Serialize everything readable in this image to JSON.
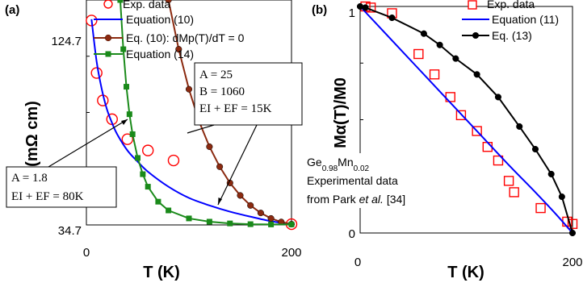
{
  "chart_data": [
    {
      "panel_label": "(a)",
      "type": "scatter",
      "xlabel": "T (K)",
      "ylabel": "ρ (mΩ cm)",
      "xlim": [
        0,
        200
      ],
      "ylim": [
        34.7,
        124.7
      ],
      "x_ticks": [
        "0",
        "200"
      ],
      "y_ticks": [
        "124.7",
        "34.7"
      ],
      "legend_position": "top-right",
      "series": [
        {
          "name": "Exp. data",
          "kind": "markers",
          "marker": "open-circle",
          "color": "#ff0000",
          "x": [
            5,
            10,
            16,
            25,
            40,
            60,
            85,
            200
          ],
          "y": [
            116.5,
            95.5,
            84.5,
            77.0,
            69.0,
            64.5,
            60.5,
            35.0
          ]
        },
        {
          "name": "Equation (10)",
          "kind": "line",
          "color": "#0000ff",
          "x": [
            5,
            10,
            15,
            20,
            25,
            30,
            40,
            50,
            60,
            80,
            100,
            120,
            140,
            160,
            180,
            200
          ],
          "y": [
            117.0,
            100.0,
            89.0,
            81.0,
            75.5,
            71.0,
            64.5,
            60.0,
            56.0,
            50.0,
            45.5,
            42.5,
            40.0,
            38.0,
            36.2,
            35.0
          ]
        },
        {
          "name": "Eq. (10): dMp(T)/dT = 0",
          "kind": "line-markers",
          "marker": "filled-circle",
          "color": "#8b2a10",
          "x": [
            80,
            90,
            100,
            110,
            120,
            130,
            140,
            150,
            160,
            170,
            180,
            190,
            200
          ],
          "y": [
            124.7,
            105.0,
            89.0,
            76.0,
            66.0,
            58.0,
            51.5,
            46.5,
            42.5,
            39.5,
            37.3,
            35.9,
            35.0
          ]
        },
        {
          "name": "Equation (14)",
          "kind": "line-markers",
          "marker": "filled-square",
          "color": "#1a8a1a",
          "x": [
            33,
            36,
            39,
            42,
            45,
            50,
            55,
            60,
            70,
            80,
            100,
            120,
            140,
            160,
            180,
            200
          ],
          "y": [
            124.7,
            105.0,
            90.0,
            79.0,
            71.0,
            61.5,
            55.0,
            50.0,
            44.0,
            40.5,
            37.3,
            36.0,
            35.3,
            35.0,
            34.9,
            34.9
          ]
        }
      ],
      "annotations": [
        {
          "text_lines": [
            "A = 25",
            "B = 1060",
            "EI + EF = 15K"
          ]
        },
        {
          "text_lines": [
            "A = 1.8",
            "EI + EF = 80K"
          ]
        }
      ]
    },
    {
      "panel_label": "(b)",
      "type": "scatter",
      "xlabel": "T (K)",
      "ylabel": "Mα(T)/M0",
      "xlim": [
        0,
        200
      ],
      "ylim": [
        0,
        1
      ],
      "x_ticks": [
        "0",
        "200"
      ],
      "y_ticks": [
        "1",
        "0"
      ],
      "legend_position": "top-right",
      "series": [
        {
          "name": "Exp. data",
          "kind": "markers",
          "marker": "open-square",
          "color": "#ff0000",
          "x": [
            5,
            10,
            30,
            55,
            70,
            85,
            95,
            110,
            120,
            130,
            140,
            145,
            170,
            195,
            200
          ],
          "y": [
            1.0,
            0.995,
            0.97,
            0.79,
            0.7,
            0.6,
            0.52,
            0.45,
            0.38,
            0.32,
            0.23,
            0.18,
            0.11,
            0.05,
            0.04
          ]
        },
        {
          "name": "Equation (11)",
          "kind": "line",
          "color": "#0000ff",
          "x": [
            0,
            20,
            50,
            80,
            110,
            140,
            165,
            185,
            200
          ],
          "y": [
            1.0,
            0.9,
            0.75,
            0.6,
            0.45,
            0.3,
            0.18,
            0.08,
            0.0
          ]
        },
        {
          "name": "Eq. (13)",
          "kind": "line-markers",
          "marker": "filled-circle",
          "color": "#000000",
          "x": [
            0,
            5,
            30,
            60,
            75,
            90,
            110,
            130,
            150,
            165,
            180,
            190,
            200
          ],
          "y": [
            1.0,
            0.995,
            0.95,
            0.88,
            0.83,
            0.77,
            0.7,
            0.6,
            0.47,
            0.37,
            0.26,
            0.16,
            0.0
          ]
        }
      ],
      "annotations": [
        {
          "text_lines": [
            "Ge0.98Mn0.02",
            "Experimental data",
            "from Park et al. [34]"
          ]
        }
      ]
    }
  ]
}
